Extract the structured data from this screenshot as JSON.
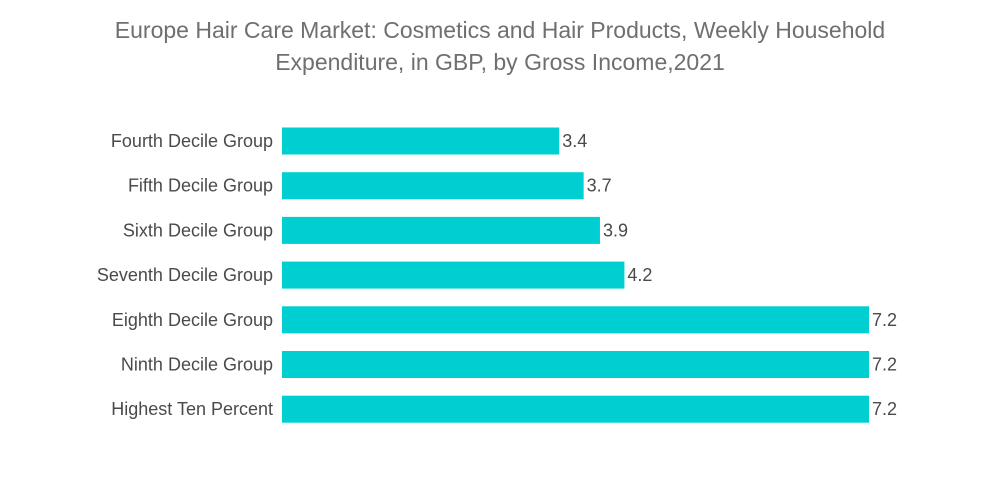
{
  "chart_data": {
    "type": "bar",
    "orientation": "horizontal",
    "title_lines": [
      "Europe Hair Care Market: Cosmetics and Hair Products, Weekly Household",
      "Expenditure, in GBP, by Gross Income,2021"
    ],
    "categories": [
      "Fourth Decile Group",
      "Fifth Decile Group",
      "Sixth Decile Group",
      "Seventh Decile Group",
      "Eighth Decile Group",
      "Ninth Decile Group",
      "Highest Ten Percent"
    ],
    "values": [
      3.4,
      3.7,
      3.9,
      4.2,
      7.2,
      7.2,
      7.2
    ],
    "value_labels": [
      "3.4",
      "3.7",
      "3.9",
      "4.2",
      "7.2",
      "7.2",
      "7.2"
    ],
    "xlabel": "",
    "ylabel": "",
    "xlim": [
      0,
      7.2
    ],
    "grid": false,
    "legend": "none",
    "bar_color": "#00cfd1"
  }
}
